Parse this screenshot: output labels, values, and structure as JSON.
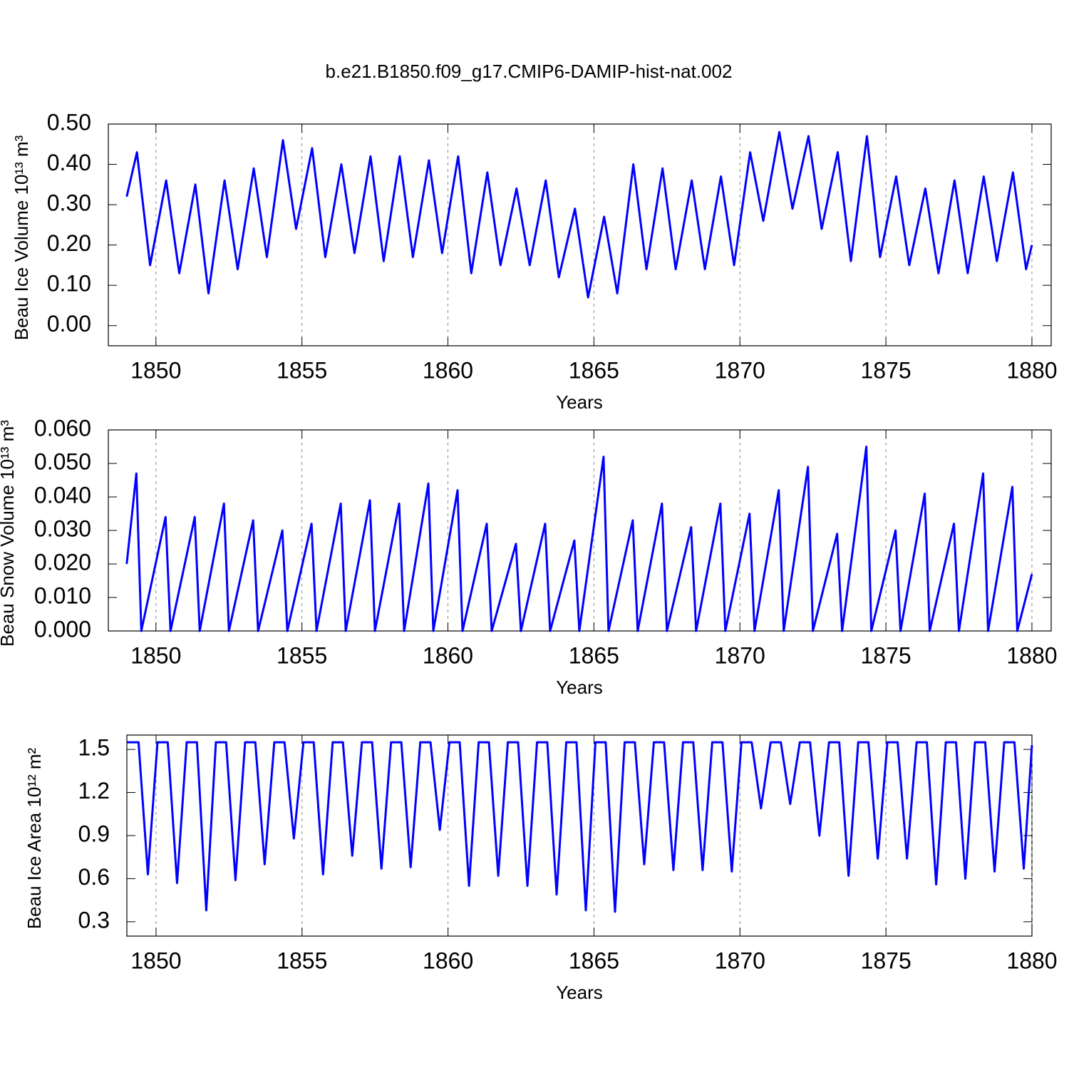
{
  "chart_data": [
    {
      "type": "line",
      "title": "b.e21.B1850.f09_g17.CMIP6-DAMIP-hist-nat.002",
      "ylabel": "Beau Ice Volume 10¹³ m³",
      "xlabel": "Years",
      "xlim": [
        1848.37,
        1880.66
      ],
      "xticks": [
        1850,
        1855,
        1860,
        1865,
        1870,
        1875,
        1880
      ],
      "grid": true,
      "ylim": [
        -0.05,
        0.5
      ],
      "yticks": [
        {
          "value": 0,
          "label": "0.00"
        },
        {
          "value": 0.1,
          "label": "0.10"
        },
        {
          "value": 0.2,
          "label": "0.20"
        },
        {
          "value": 0.3,
          "label": "0.30"
        },
        {
          "value": 0.4,
          "label": "0.40"
        },
        {
          "value": 0.5,
          "label": "0.50"
        }
      ],
      "x": [
        1849.0,
        1849.35,
        1849.8,
        1850.35,
        1850.8,
        1851.35,
        1851.8,
        1852.35,
        1852.8,
        1853.35,
        1853.8,
        1854.35,
        1854.8,
        1855.35,
        1855.8,
        1856.35,
        1856.8,
        1857.35,
        1857.8,
        1858.35,
        1858.8,
        1859.35,
        1859.8,
        1860.35,
        1860.8,
        1861.35,
        1861.8,
        1862.35,
        1862.8,
        1863.35,
        1863.8,
        1864.35,
        1864.8,
        1865.35,
        1865.8,
        1866.35,
        1866.8,
        1867.35,
        1867.8,
        1868.35,
        1868.8,
        1869.35,
        1869.8,
        1870.35,
        1870.8,
        1871.35,
        1871.8,
        1872.35,
        1872.8,
        1873.35,
        1873.8,
        1874.35,
        1874.8,
        1875.35,
        1875.8,
        1876.35,
        1876.8,
        1877.35,
        1877.8,
        1878.35,
        1878.8,
        1879.35,
        1879.8,
        1880.0
      ],
      "series": [
        {
          "color": "#0000ff",
          "values": [
            0.32,
            0.43,
            0.15,
            0.36,
            0.13,
            0.35,
            0.08,
            0.36,
            0.14,
            0.39,
            0.17,
            0.46,
            0.24,
            0.44,
            0.17,
            0.4,
            0.18,
            0.42,
            0.16,
            0.42,
            0.17,
            0.41,
            0.18,
            0.42,
            0.13,
            0.38,
            0.15,
            0.34,
            0.15,
            0.36,
            0.12,
            0.29,
            0.07,
            0.27,
            0.08,
            0.4,
            0.14,
            0.39,
            0.14,
            0.36,
            0.14,
            0.37,
            0.15,
            0.43,
            0.26,
            0.48,
            0.29,
            0.47,
            0.24,
            0.43,
            0.16,
            0.47,
            0.17,
            0.37,
            0.15,
            0.34,
            0.13,
            0.36,
            0.13,
            0.37,
            0.16,
            0.38,
            0.14,
            0.2
          ]
        }
      ]
    },
    {
      "type": "line",
      "ylabel": "Beau Snow Volume 10¹³ m³",
      "xlabel": "Years",
      "xlim": [
        1848.37,
        1880.66
      ],
      "xticks": [
        1850,
        1855,
        1860,
        1865,
        1870,
        1875,
        1880
      ],
      "grid": true,
      "ylim": [
        0,
        0.06
      ],
      "yticks": [
        {
          "value": 0,
          "label": "0.000"
        },
        {
          "value": 0.01,
          "label": "0.010"
        },
        {
          "value": 0.02,
          "label": "0.020"
        },
        {
          "value": 0.03,
          "label": "0.030"
        },
        {
          "value": 0.04,
          "label": "0.040"
        },
        {
          "value": 0.05,
          "label": "0.050"
        },
        {
          "value": 0.06,
          "label": "0.060"
        }
      ],
      "x": [
        1849.0,
        1849.33,
        1849.5,
        1850.33,
        1850.5,
        1851.33,
        1851.5,
        1852.33,
        1852.5,
        1853.33,
        1853.5,
        1854.33,
        1854.5,
        1855.33,
        1855.5,
        1856.33,
        1856.5,
        1857.33,
        1857.5,
        1858.33,
        1858.5,
        1859.33,
        1859.5,
        1860.33,
        1860.5,
        1861.33,
        1861.5,
        1862.33,
        1862.5,
        1863.33,
        1863.5,
        1864.33,
        1864.5,
        1865.33,
        1865.5,
        1866.33,
        1866.5,
        1867.33,
        1867.5,
        1868.33,
        1868.5,
        1869.33,
        1869.5,
        1870.33,
        1870.5,
        1871.33,
        1871.5,
        1872.33,
        1872.5,
        1873.33,
        1873.5,
        1874.33,
        1874.5,
        1875.33,
        1875.5,
        1876.33,
        1876.5,
        1877.33,
        1877.5,
        1878.33,
        1878.5,
        1879.33,
        1879.5,
        1880.0
      ],
      "series": [
        {
          "color": "#0000ff",
          "values": [
            0.02,
            0.047,
            0,
            0.034,
            0,
            0.034,
            0,
            0.038,
            0,
            0.033,
            0,
            0.03,
            0,
            0.032,
            0,
            0.038,
            0,
            0.039,
            0,
            0.038,
            0,
            0.044,
            0,
            0.042,
            0,
            0.032,
            0,
            0.026,
            0,
            0.032,
            0,
            0.027,
            0,
            0.052,
            0,
            0.033,
            0,
            0.038,
            0,
            0.031,
            0,
            0.038,
            0,
            0.035,
            0,
            0.042,
            0,
            0.049,
            0,
            0.029,
            0,
            0.055,
            0,
            0.03,
            0,
            0.041,
            0,
            0.032,
            0,
            0.047,
            0,
            0.043,
            0,
            0.017
          ]
        }
      ]
    },
    {
      "type": "line",
      "ylabel": "Beau Ice Area 10¹² m²",
      "xlabel": "Years",
      "xlim": [
        1849,
        1880
      ],
      "xticks": [
        1850,
        1855,
        1860,
        1865,
        1870,
        1875,
        1880
      ],
      "grid": true,
      "ylim": [
        0.2,
        1.6
      ],
      "yticks": [
        0.3,
        0.6,
        0.9,
        1.2,
        1.5
      ],
      "x": [
        1849.0,
        1849.4,
        1849.72,
        1850.05,
        1850.4,
        1850.72,
        1851.05,
        1851.4,
        1851.72,
        1852.05,
        1852.4,
        1852.72,
        1853.05,
        1853.4,
        1853.72,
        1854.05,
        1854.4,
        1854.72,
        1855.05,
        1855.4,
        1855.72,
        1856.05,
        1856.4,
        1856.72,
        1857.05,
        1857.4,
        1857.72,
        1858.05,
        1858.4,
        1858.72,
        1859.05,
        1859.4,
        1859.72,
        1860.05,
        1860.4,
        1860.72,
        1861.05,
        1861.4,
        1861.72,
        1862.05,
        1862.4,
        1862.72,
        1863.05,
        1863.4,
        1863.72,
        1864.05,
        1864.4,
        1864.72,
        1865.05,
        1865.4,
        1865.72,
        1866.05,
        1866.4,
        1866.72,
        1867.05,
        1867.4,
        1867.72,
        1868.05,
        1868.4,
        1868.72,
        1869.05,
        1869.4,
        1869.72,
        1870.05,
        1870.4,
        1870.72,
        1871.05,
        1871.4,
        1871.72,
        1872.05,
        1872.4,
        1872.72,
        1873.05,
        1873.4,
        1873.72,
        1874.05,
        1874.4,
        1874.72,
        1875.05,
        1875.4,
        1875.72,
        1876.05,
        1876.4,
        1876.72,
        1877.05,
        1877.4,
        1877.72,
        1878.05,
        1878.4,
        1878.72,
        1879.05,
        1879.4,
        1879.72,
        1880.0
      ],
      "series": [
        {
          "color": "#0000ff",
          "values": [
            1.55,
            1.55,
            0.63,
            1.55,
            1.55,
            0.57,
            1.55,
            1.55,
            0.38,
            1.55,
            1.55,
            0.59,
            1.55,
            1.55,
            0.7,
            1.55,
            1.55,
            0.88,
            1.55,
            1.55,
            0.63,
            1.55,
            1.55,
            0.76,
            1.55,
            1.55,
            0.67,
            1.55,
            1.55,
            0.68,
            1.55,
            1.55,
            0.94,
            1.55,
            1.55,
            0.55,
            1.55,
            1.55,
            0.62,
            1.55,
            1.55,
            0.55,
            1.55,
            1.55,
            0.49,
            1.55,
            1.55,
            0.38,
            1.55,
            1.55,
            0.37,
            1.55,
            1.55,
            0.7,
            1.55,
            1.55,
            0.66,
            1.55,
            1.55,
            0.66,
            1.55,
            1.55,
            0.65,
            1.55,
            1.55,
            1.09,
            1.55,
            1.55,
            1.12,
            1.55,
            1.55,
            0.9,
            1.55,
            1.55,
            0.62,
            1.55,
            1.55,
            0.74,
            1.55,
            1.55,
            0.74,
            1.55,
            1.55,
            0.56,
            1.55,
            1.55,
            0.6,
            1.55,
            1.55,
            0.65,
            1.55,
            1.55,
            0.67,
            1.53
          ]
        }
      ]
    }
  ]
}
